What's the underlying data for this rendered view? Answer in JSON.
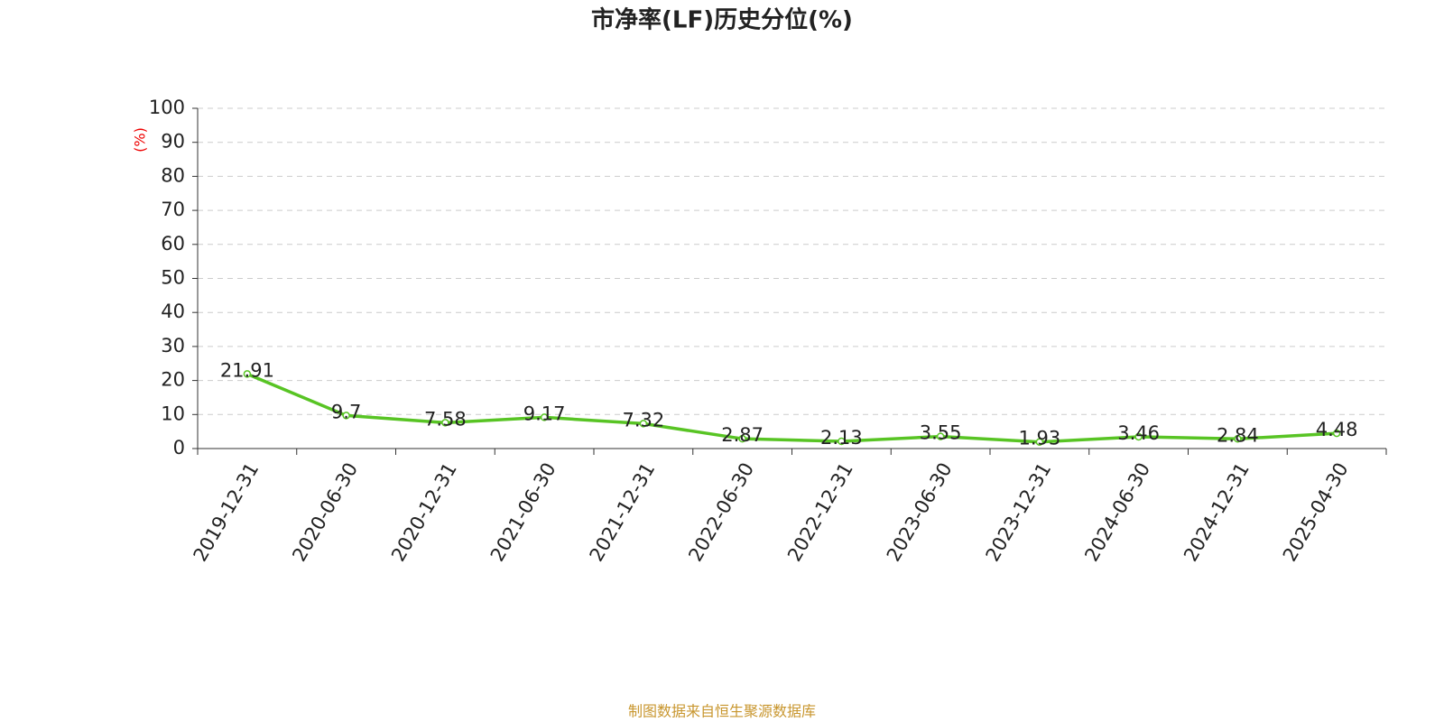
{
  "chart_data": {
    "type": "line",
    "title": "市净率(LF)历史分位(%)",
    "y_label": "(%)",
    "categories": [
      "2019-12-31",
      "2020-06-30",
      "2020-12-31",
      "2021-06-30",
      "2021-12-31",
      "2022-06-30",
      "2022-12-31",
      "2023-06-30",
      "2023-12-31",
      "2024-06-30",
      "2024-12-31",
      "2025-04-30"
    ],
    "values": [
      21.91,
      9.7,
      7.58,
      9.17,
      7.32,
      2.87,
      2.13,
      3.55,
      1.93,
      3.46,
      2.84,
      4.48
    ],
    "color": "#58c424",
    "ylim": [
      0,
      100
    ],
    "yticks": [
      0,
      10,
      20,
      30,
      40,
      50,
      60,
      70,
      80,
      90,
      100
    ],
    "grid": true,
    "source": "制图数据来自恒生聚源数据库"
  }
}
